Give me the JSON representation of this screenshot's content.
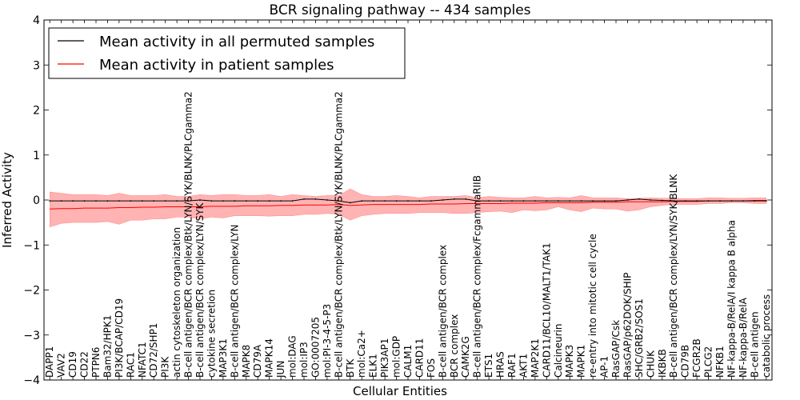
{
  "chart_data": {
    "type": "line",
    "title": "BCR signaling pathway -- 434 samples",
    "xlabel": "Cellular Entities",
    "ylabel": "Inferred Activity",
    "ylim": [
      -4,
      4
    ],
    "yticks": [
      "−4",
      "−3",
      "−2",
      "−1",
      "0",
      "1",
      "2",
      "3",
      "4"
    ],
    "legend_position": "upper-left",
    "colors": {
      "permuted_line": "#000000",
      "patient_line": "#ff0000",
      "patient_band": "#ff9999"
    },
    "categories": [
      "DAPP1",
      "VAV2",
      "CD19",
      "CD22",
      "PTPN6",
      "Bam32/HPK1",
      "PI3K/BCAP/CD19",
      "RAC1",
      "NFATC1",
      "CD72/SHP1",
      "PI3K",
      "actin cytoskeleton organization",
      "B-cell antigen/BCR complex/Btk/LYN/SYK/BLNK/PLCgamma2",
      "B-cell antigen/BCR complex/LYN/SYK",
      "cytokine secretion",
      "MAP3K1",
      "B-cell antigen/BCR complex/LYN",
      "MAPK8",
      "CD79A",
      "MAPK14",
      "JUN",
      "mol:DAG",
      "mol:IP3",
      "GO:0007205",
      "mol:PI-3-4-5-P3",
      "B-cell antigen/BCR complex/Btk/LYN/SYK/BLNK/PLCgamma2",
      "BTK",
      "mol:Ca2+",
      "ELK1",
      "PIK3AP1",
      "mol:GDP",
      "CALM1",
      "CARD11",
      "FOS",
      "B-cell antigen/BCR complex",
      "BCR complex",
      "CAMK2G",
      "B-cell antigen/BCR complex/FcgammaRIIB",
      "ETS1",
      "HRAS",
      "RAF1",
      "AKT1",
      "MAP2K1",
      "CARD11/BCL10/MALT1/TAK1",
      "Calcineurin",
      "MAPK3",
      "MAPK1",
      "re-entry into mitotic cell cycle",
      "AP-1",
      "RasGAP/Csk",
      "RasGAP/p62DOK/SHIP",
      "SHC/GRB2/SOS1",
      "CHUK",
      "IKBKB",
      "B-cell antigen/BCR complex/LYN/SYK/BLNK",
      "CD79B",
      "FCGR2B",
      "PLCG2",
      "NFKB1",
      "NF-kappa-B/RelA/I kappa B alpha",
      "NF-kappa-B/RelA",
      "B-cell antigen",
      "catabolic process"
    ],
    "series": [
      {
        "name": "Mean activity in all permuted samples",
        "values": [
          -0.02,
          -0.02,
          -0.02,
          -0.02,
          -0.02,
          -0.02,
          -0.02,
          -0.02,
          -0.02,
          -0.02,
          -0.02,
          -0.02,
          -0.02,
          0.0,
          -0.02,
          -0.02,
          -0.02,
          -0.02,
          -0.02,
          -0.02,
          -0.02,
          -0.02,
          0.02,
          0.02,
          0.0,
          -0.02,
          -0.06,
          -0.02,
          -0.02,
          -0.02,
          -0.02,
          -0.02,
          -0.02,
          -0.02,
          0.0,
          0.02,
          0.02,
          -0.02,
          -0.02,
          -0.02,
          -0.02,
          -0.02,
          -0.02,
          -0.02,
          -0.02,
          -0.02,
          -0.02,
          -0.02,
          -0.02,
          -0.02,
          0.0,
          0.02,
          0.0,
          -0.01,
          -0.02,
          -0.02,
          -0.02,
          -0.02,
          -0.02,
          -0.02,
          -0.02,
          -0.02,
          -0.02
        ]
      },
      {
        "name": "Mean activity in patient samples",
        "values": [
          -0.2,
          -0.19,
          -0.19,
          -0.18,
          -0.18,
          -0.18,
          -0.17,
          -0.17,
          -0.16,
          -0.16,
          -0.15,
          -0.15,
          -0.15,
          -0.15,
          -0.14,
          -0.14,
          -0.14,
          -0.13,
          -0.13,
          -0.13,
          -0.12,
          -0.12,
          -0.11,
          -0.11,
          -0.11,
          -0.1,
          -0.12,
          -0.11,
          -0.1,
          -0.1,
          -0.1,
          -0.1,
          -0.1,
          -0.09,
          -0.09,
          -0.09,
          -0.08,
          -0.08,
          -0.08,
          -0.08,
          -0.07,
          -0.07,
          -0.07,
          -0.06,
          -0.06,
          -0.06,
          -0.06,
          -0.05,
          -0.05,
          -0.05,
          -0.04,
          -0.04,
          -0.04,
          -0.04,
          -0.03,
          -0.03,
          -0.03,
          -0.02,
          -0.02,
          -0.02,
          -0.02,
          -0.01,
          -0.01
        ],
        "band_upper": [
          0.18,
          0.15,
          0.12,
          0.12,
          0.12,
          0.1,
          0.15,
          0.1,
          0.1,
          0.1,
          0.12,
          0.08,
          0.08,
          0.12,
          0.1,
          0.12,
          0.12,
          0.1,
          0.1,
          0.12,
          0.08,
          0.12,
          0.1,
          0.08,
          0.1,
          0.1,
          0.25,
          0.12,
          0.08,
          0.08,
          0.1,
          0.08,
          0.05,
          0.08,
          0.08,
          0.08,
          0.1,
          0.05,
          0.08,
          0.06,
          0.05,
          0.05,
          0.08,
          0.05,
          0.06,
          0.05,
          0.1,
          0.05,
          0.05,
          0.05,
          0.03,
          0.04,
          0.05,
          0.04,
          0.04,
          0.03,
          0.03,
          0.05,
          0.05,
          0.04,
          0.04,
          0.05,
          0.05
        ],
        "band_lower": [
          -0.6,
          -0.52,
          -0.5,
          -0.5,
          -0.5,
          -0.48,
          -0.54,
          -0.45,
          -0.45,
          -0.42,
          -0.42,
          -0.38,
          -0.38,
          -0.42,
          -0.38,
          -0.4,
          -0.35,
          -0.35,
          -0.35,
          -0.36,
          -0.35,
          -0.35,
          -0.32,
          -0.32,
          -0.3,
          -0.32,
          -0.45,
          -0.35,
          -0.32,
          -0.3,
          -0.3,
          -0.3,
          -0.28,
          -0.28,
          -0.28,
          -0.3,
          -0.3,
          -0.28,
          -0.26,
          -0.25,
          -0.28,
          -0.22,
          -0.24,
          -0.22,
          -0.15,
          -0.22,
          -0.26,
          -0.18,
          -0.2,
          -0.2,
          -0.25,
          -0.22,
          -0.15,
          -0.12,
          -0.1,
          -0.1,
          -0.1,
          -0.08,
          -0.08,
          -0.06,
          -0.06,
          -0.08,
          -0.08
        ]
      }
    ]
  }
}
